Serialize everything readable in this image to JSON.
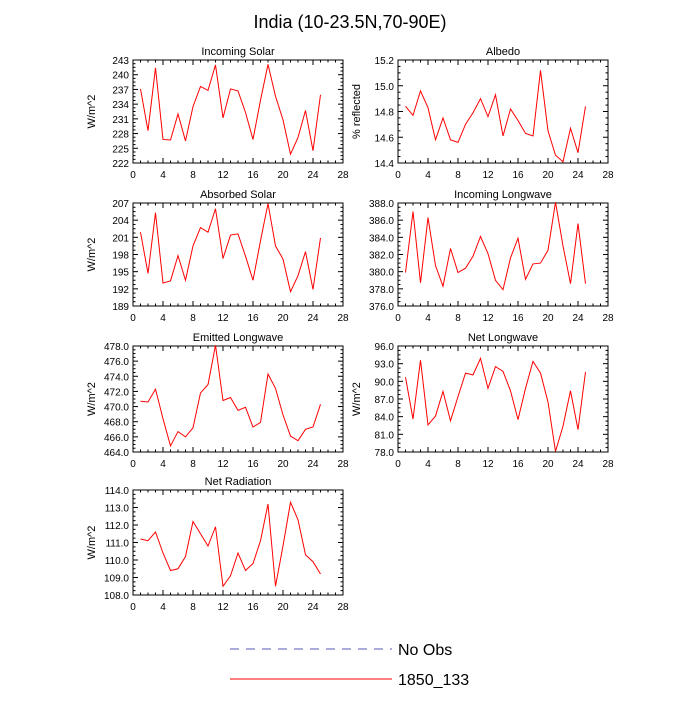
{
  "page_title": "India (10-23.5N,70-90E)",
  "legend": {
    "entries": [
      {
        "label": "No Obs",
        "style": "dashed",
        "color": "#5a5ab4"
      },
      {
        "label": "1850_133",
        "style": "solid",
        "color": "#ff0000"
      }
    ]
  },
  "line_color": "#ff0000",
  "chart_data": [
    {
      "type": "line",
      "title": "Incoming Solar",
      "xlabel": "",
      "ylabel": "W/m^2",
      "xlim": [
        0,
        28
      ],
      "xticks": [
        0,
        4,
        8,
        12,
        16,
        20,
        24,
        28
      ],
      "ylim": [
        222,
        243
      ],
      "yticks": [
        "222",
        "225",
        "228",
        "231",
        "234",
        "237",
        "240",
        "243"
      ],
      "series": [
        {
          "x": [
            1,
            2,
            3,
            4,
            5,
            6,
            7,
            8,
            9,
            10,
            11,
            12,
            13,
            14,
            15,
            16,
            17,
            18,
            19,
            20,
            21,
            22,
            23,
            24,
            25
          ],
          "y": [
            237.1,
            228.6,
            241.4,
            226.8,
            226.7,
            232.0,
            226.5,
            233.5,
            237.6,
            236.8,
            242.0,
            231.2,
            237.1,
            236.7,
            232.3,
            226.8,
            234.8,
            242.1,
            235.6,
            230.8,
            223.8,
            227.2,
            232.7,
            224.5,
            235.9
          ]
        }
      ]
    },
    {
      "type": "line",
      "title": "Albedo",
      "xlabel": "",
      "ylabel": "% reflected",
      "xlim": [
        0,
        28
      ],
      "xticks": [
        0,
        4,
        8,
        12,
        16,
        20,
        24,
        28
      ],
      "ylim": [
        14.4,
        15.2
      ],
      "yticks": [
        "14.4",
        "14.6",
        "14.8",
        "15.0",
        "15.2"
      ],
      "series": [
        {
          "x": [
            1,
            2,
            3,
            4,
            5,
            6,
            7,
            8,
            9,
            10,
            11,
            12,
            13,
            14,
            15,
            16,
            17,
            18,
            19,
            20,
            21,
            22,
            23,
            24,
            25
          ],
          "y": [
            14.84,
            14.77,
            14.96,
            14.83,
            14.58,
            14.75,
            14.58,
            14.56,
            14.7,
            14.79,
            14.9,
            14.76,
            14.93,
            14.61,
            14.82,
            14.73,
            14.63,
            14.61,
            15.12,
            14.65,
            14.46,
            14.41,
            14.67,
            14.48,
            14.84
          ]
        }
      ]
    },
    {
      "type": "line",
      "title": "Absorbed Solar",
      "xlabel": "",
      "ylabel": "W/m^2",
      "xlim": [
        0,
        28
      ],
      "xticks": [
        0,
        4,
        8,
        12,
        16,
        20,
        24,
        28
      ],
      "ylim": [
        189,
        207
      ],
      "yticks": [
        "189",
        "192",
        "195",
        "198",
        "201",
        "204",
        "207"
      ],
      "series": [
        {
          "x": [
            1,
            2,
            3,
            4,
            5,
            6,
            7,
            8,
            9,
            10,
            11,
            12,
            13,
            14,
            15,
            16,
            17,
            18,
            19,
            20,
            21,
            22,
            23,
            24,
            25
          ],
          "y": [
            201.9,
            194.7,
            205.3,
            193.0,
            193.4,
            197.8,
            193.5,
            199.5,
            202.7,
            201.9,
            206.0,
            197.3,
            201.4,
            201.6,
            197.7,
            193.5,
            200.4,
            206.9,
            199.5,
            197.2,
            191.5,
            194.3,
            198.5,
            191.9,
            200.9
          ]
        }
      ]
    },
    {
      "type": "line",
      "title": "Incoming Longwave",
      "xlabel": "",
      "ylabel": "",
      "xlim": [
        0,
        28
      ],
      "xticks": [
        0,
        4,
        8,
        12,
        16,
        20,
        24,
        28
      ],
      "ylim": [
        376.0,
        388.0
      ],
      "yticks": [
        "376.0",
        "378.0",
        "380.0",
        "382.0",
        "384.0",
        "386.0",
        "388.0"
      ],
      "series": [
        {
          "x": [
            1,
            2,
            3,
            4,
            5,
            6,
            7,
            8,
            9,
            10,
            11,
            12,
            13,
            14,
            15,
            16,
            17,
            18,
            19,
            20,
            21,
            22,
            23,
            24,
            25
          ],
          "y": [
            379.9,
            387.0,
            378.7,
            386.3,
            380.7,
            378.3,
            382.7,
            379.9,
            380.4,
            381.8,
            384.1,
            382.1,
            379.0,
            377.9,
            381.6,
            383.9,
            379.1,
            380.9,
            381.0,
            382.5,
            388.1,
            383.0,
            378.6,
            385.6,
            378.6
          ]
        }
      ]
    },
    {
      "type": "line",
      "title": "Emitted Longwave",
      "xlabel": "",
      "ylabel": "W/m^2",
      "xlim": [
        0,
        28
      ],
      "xticks": [
        0,
        4,
        8,
        12,
        16,
        20,
        24,
        28
      ],
      "ylim": [
        464.0,
        478.0
      ],
      "yticks": [
        "464.0",
        "466.0",
        "468.0",
        "470.0",
        "472.0",
        "474.0",
        "476.0",
        "478.0"
      ],
      "series": [
        {
          "x": [
            1,
            2,
            3,
            4,
            5,
            6,
            7,
            8,
            9,
            10,
            11,
            12,
            13,
            14,
            15,
            16,
            17,
            18,
            19,
            20,
            21,
            22,
            23,
            24,
            25
          ],
          "y": [
            470.7,
            470.6,
            472.3,
            468.4,
            464.8,
            466.7,
            466.0,
            467.2,
            471.8,
            472.9,
            478.1,
            470.8,
            471.2,
            469.5,
            469.9,
            467.3,
            467.9,
            474.3,
            472.4,
            468.9,
            466.1,
            465.5,
            467.0,
            467.3,
            470.3
          ]
        }
      ]
    },
    {
      "type": "line",
      "title": "Net Longwave",
      "xlabel": "",
      "ylabel": "W/m^2",
      "xlim": [
        0,
        28
      ],
      "xticks": [
        0,
        4,
        8,
        12,
        16,
        20,
        24,
        28
      ],
      "ylim": [
        78.0,
        96.0
      ],
      "yticks": [
        "78.0",
        "81.0",
        "84.0",
        "87.0",
        "90.0",
        "93.0",
        "96.0"
      ],
      "series": [
        {
          "x": [
            1,
            2,
            3,
            4,
            5,
            6,
            7,
            8,
            9,
            10,
            11,
            12,
            13,
            14,
            15,
            16,
            17,
            18,
            19,
            20,
            21,
            22,
            23,
            24,
            25
          ],
          "y": [
            90.7,
            83.6,
            93.6,
            82.6,
            84.1,
            88.3,
            83.3,
            87.4,
            91.4,
            91.1,
            93.9,
            88.8,
            92.5,
            91.7,
            88.4,
            83.5,
            88.8,
            93.4,
            91.4,
            86.5,
            78.1,
            82.4,
            88.4,
            81.8,
            91.6
          ]
        }
      ]
    },
    {
      "type": "line",
      "title": "Net Radiation",
      "xlabel": "",
      "ylabel": "W/m^2",
      "xlim": [
        0,
        28
      ],
      "xticks": [
        0,
        4,
        8,
        12,
        16,
        20,
        24,
        28
      ],
      "ylim": [
        108.0,
        114.0
      ],
      "yticks": [
        "108.0",
        "109.0",
        "110.0",
        "111.0",
        "112.0",
        "113.0",
        "114.0"
      ],
      "series": [
        {
          "x": [
            1,
            2,
            3,
            4,
            5,
            6,
            7,
            8,
            9,
            10,
            11,
            12,
            13,
            14,
            15,
            16,
            17,
            18,
            19,
            20,
            21,
            22,
            23,
            24,
            25
          ],
          "y": [
            111.2,
            111.1,
            111.6,
            110.4,
            109.4,
            109.5,
            110.2,
            112.2,
            111.5,
            110.8,
            111.9,
            108.5,
            109.1,
            110.4,
            109.4,
            109.8,
            111.1,
            113.2,
            108.5,
            110.8,
            113.3,
            112.3,
            110.3,
            109.9,
            109.2
          ]
        }
      ]
    }
  ]
}
